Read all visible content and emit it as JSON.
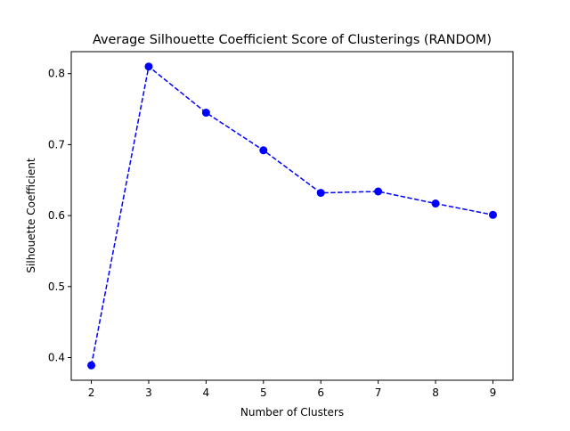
{
  "chart_data": {
    "type": "line",
    "title": "Average Silhouette Coefficient Score of Clusterings (RANDOM)",
    "xlabel": "Number of Clusters",
    "ylabel": "Silhouette Coefficient",
    "x": [
      2,
      3,
      4,
      5,
      6,
      7,
      8,
      9
    ],
    "series": [
      {
        "values": [
          0.389,
          0.81,
          0.745,
          0.692,
          0.632,
          0.634,
          0.617,
          0.601
        ],
        "color": "#0000ff",
        "line_style": "dashed",
        "marker": "circle"
      }
    ],
    "xticks": [
      "2",
      "3",
      "4",
      "5",
      "6",
      "7",
      "8",
      "9"
    ],
    "yticks": [
      "0.4",
      "0.5",
      "0.6",
      "0.7",
      "0.8"
    ],
    "xlim": [
      1.65,
      9.35
    ],
    "ylim": [
      0.368,
      0.831
    ],
    "grid": false,
    "legend": "none"
  }
}
